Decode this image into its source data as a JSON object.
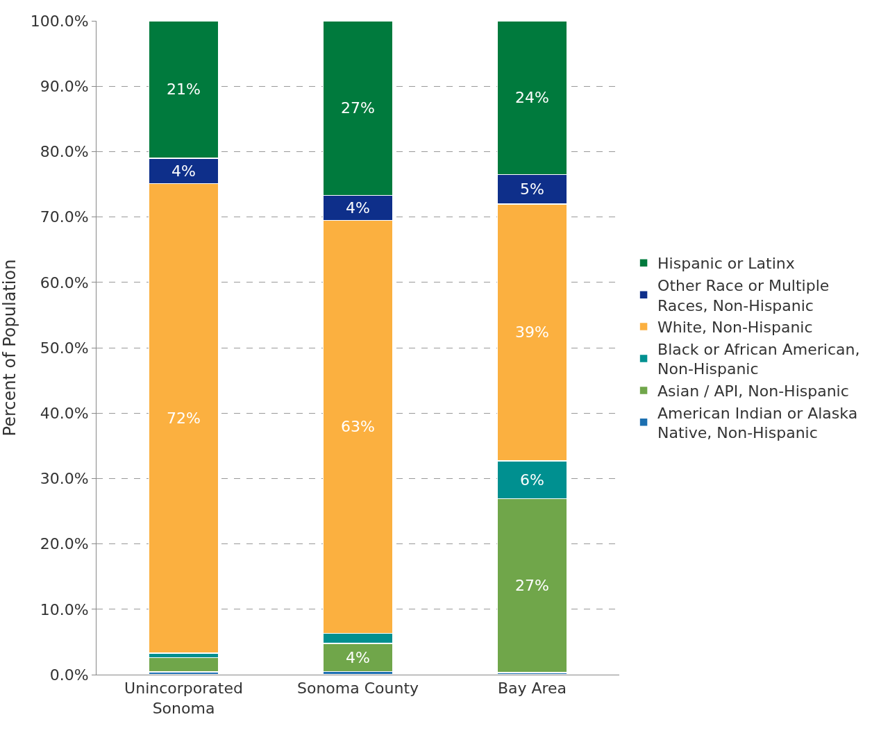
{
  "chart_data": {
    "type": "bar",
    "stacked": true,
    "ylabel": "Percent of Population",
    "categories": [
      "Unincorporated Sonoma",
      "Sonoma County",
      "Bay Area"
    ],
    "series": [
      {
        "name": "American Indian or Alaska Native, Non-Hispanic",
        "color": "#1c6fb0",
        "values": [
          0.4,
          0.5,
          0.3
        ],
        "value_labels": [
          null,
          null,
          null
        ]
      },
      {
        "name": "Asian / API, Non-Hispanic",
        "color": "#70a64a",
        "values": [
          2.2,
          4.3,
          26.6
        ],
        "value_labels": [
          null,
          "4%",
          "27%"
        ]
      },
      {
        "name": "Black or African American, Non-Hispanic",
        "color": "#009090",
        "values": [
          0.7,
          1.5,
          5.8
        ],
        "value_labels": [
          null,
          null,
          "6%"
        ]
      },
      {
        "name": "White, Non-Hispanic",
        "color": "#fbb040",
        "values": [
          71.8,
          63.2,
          39.3
        ],
        "value_labels": [
          "72%",
          "63%",
          "39%"
        ]
      },
      {
        "name": "Other Race or Multiple Races, Non-Hispanic",
        "color": "#0e2f8a",
        "values": [
          3.9,
          3.8,
          4.5
        ],
        "value_labels": [
          "4%",
          "4%",
          "5%"
        ]
      },
      {
        "name": "Hispanic or Latinx",
        "color": "#007a3d",
        "values": [
          21.0,
          26.7,
          23.5
        ],
        "value_labels": [
          "21%",
          "27%",
          "24%"
        ]
      }
    ],
    "ylim": [
      0,
      100
    ],
    "yticks": [
      {
        "value": 0,
        "label": "0.0%"
      },
      {
        "value": 10,
        "label": "10.0%"
      },
      {
        "value": 20,
        "label": "20.0%"
      },
      {
        "value": 30,
        "label": "30.0%"
      },
      {
        "value": 40,
        "label": "40.0%"
      },
      {
        "value": 50,
        "label": "50.0%"
      },
      {
        "value": 60,
        "label": "60.0%"
      },
      {
        "value": 70,
        "label": "70.0%"
      },
      {
        "value": 80,
        "label": "80.0%"
      },
      {
        "value": 90,
        "label": "90.0%"
      },
      {
        "value": 100,
        "label": "100.0%"
      }
    ],
    "grid": "y",
    "legend": "right"
  }
}
